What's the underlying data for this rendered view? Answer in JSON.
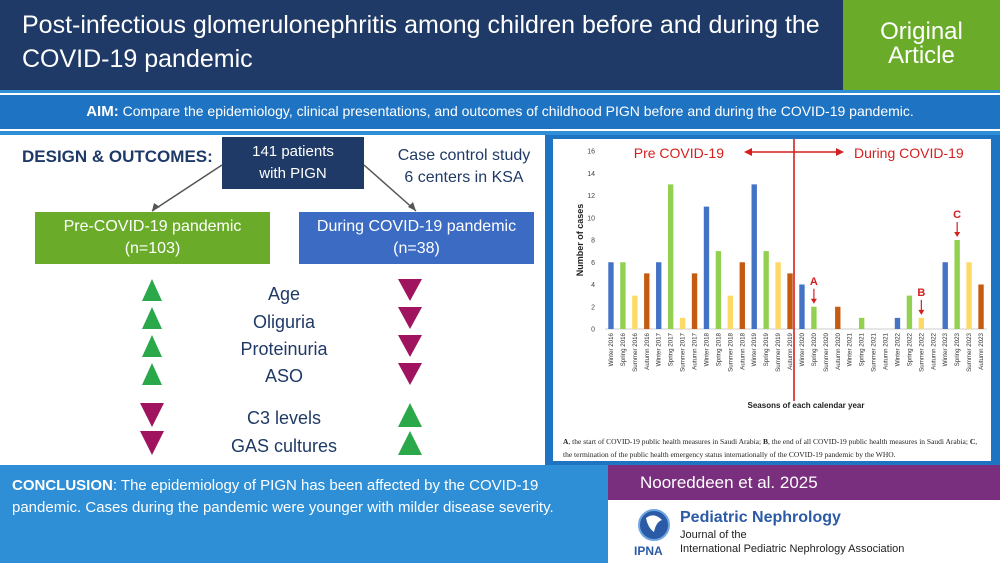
{
  "header": {
    "title": "Post-infectious glomerulonephritis among children before and during the COVID-19 pandemic",
    "article_type": "Original Article"
  },
  "aim": {
    "label": "AIM:",
    "text": " Compare the epidemiology, clinical presentations, and outcomes of childhood PIGN before and during the COVID-19 pandemic."
  },
  "design": {
    "label": "DESIGN & OUTCOMES",
    "colon": ":",
    "patients_line1": "141 patients",
    "patients_line2": "with PIGN",
    "study_line1": "Case control study",
    "study_line2": "6 centers in KSA",
    "pre_line1": "Pre-COVID-19 pandemic",
    "pre_line2": "(n=103)",
    "during_line1": "During COVID-19 pandemic",
    "during_line2": "(n=38)",
    "params": [
      "Age",
      "Oliguria",
      "Proteinuria",
      "ASO",
      "C3 levels",
      "GAS cultures"
    ],
    "colors": {
      "up": "#2aa84a",
      "down": "#a0145f",
      "navy": "#1f3a66"
    }
  },
  "chart_data": {
    "type": "bar",
    "title": "",
    "pre_label": "Pre COVID-19",
    "during_label": "During COVID-19",
    "ylabel": "Number of cases",
    "xlabel": "Seasons of each calendar year",
    "ylim": [
      0,
      16
    ],
    "yticks": [
      "0",
      "2",
      "4",
      "6",
      "8",
      "10",
      "12",
      "14",
      "16"
    ],
    "categories": [
      "Winter 2016",
      "Spring 2016",
      "Summer 2016",
      "Autumn 2016",
      "Winter 2017",
      "Spring 2017",
      "Summer 2017",
      "Autumn 2017",
      "Winter 2018",
      "Spring 2018",
      "Summer 2018",
      "Autumn 2018",
      "Winter 2019",
      "Spring 2019",
      "Summer 2019",
      "Autumn 2019",
      "Winter 2020",
      "Spring 2020",
      "Summer 2020",
      "Autumn 2020",
      "Winter 2021",
      "Spring 2021",
      "Summer 2021",
      "Autumn 2021",
      "Winter 2022",
      "Spring 2022",
      "Summer 2022",
      "Autumn 2022",
      "Winter 2023",
      "Spring 2023",
      "Summer 2023",
      "Autumn 2023"
    ],
    "values": [
      6,
      6,
      3,
      5,
      6,
      13,
      1,
      5,
      11,
      7,
      3,
      6,
      13,
      7,
      6,
      5,
      4,
      2,
      0,
      2,
      0,
      1,
      0,
      0,
      1,
      3,
      1,
      0,
      6,
      8,
      6,
      4
    ],
    "season_colors": {
      "Winter": "#4472c4",
      "Spring": "#92d050",
      "Summer": "#ffd966",
      "Autumn": "#c55a11"
    },
    "annotations": [
      {
        "label": "A",
        "category": "Spring 2020"
      },
      {
        "label": "B",
        "category": "Summer 2022"
      },
      {
        "label": "C",
        "category": "Spring 2023"
      }
    ],
    "footnote": {
      "a_key": "A",
      "a_text": ", the start of COVID-19 public health measures in Saudi Arabia; ",
      "b_key": "B",
      "b_text": ", the end of all COVID-19 public health measures in Saudi Arabia; ",
      "c_key": "C",
      "c_text": ", the termination  of the public health  emergency status internationally  of the COVID-19 pandemic by the WHO."
    }
  },
  "conclusion": {
    "label": "CONCLUSION",
    "text": ": The epidemiology of PIGN has been affected by the COVID-19 pandemic. Cases during the pandemic were younger with milder disease severity."
  },
  "citation": "Nooreddeen et al. 2025",
  "journal": {
    "name": "Pediatric Nephrology",
    "line1": "Journal of the",
    "line2": "International Pediatric Nephrology Association",
    "logo_text": "IPNA"
  }
}
